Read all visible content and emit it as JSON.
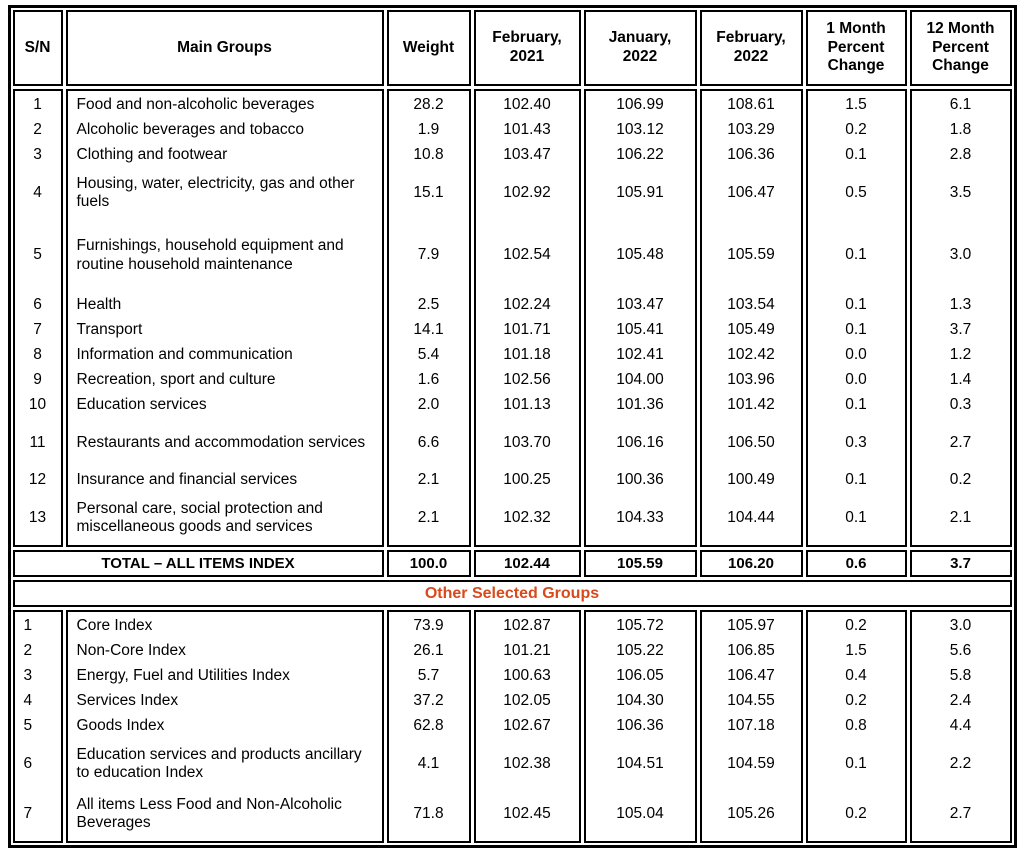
{
  "banner": {
    "label": "Other Selected Groups",
    "color": "#D8491C"
  },
  "colors": {
    "border": "#000000",
    "text": "#000000",
    "background": "#ffffff"
  },
  "header": {
    "columns": [
      "S/N",
      "Main Groups",
      "Weight",
      "February,\n2021",
      "January,\n2022",
      "February,\n2022",
      "1 Month\nPercent\nChange",
      "12 Month\nPercent\nChange"
    ]
  },
  "main_rows": [
    {
      "sn": "1",
      "name": "Food and non-alcoholic beverages",
      "weight": "28.2",
      "feb21": "102.40",
      "jan22": "106.99",
      "feb22": "108.61",
      "chg1": "1.5",
      "chg12": "6.1",
      "lines": 1
    },
    {
      "sn": "2",
      "name": "Alcoholic beverages and tobacco",
      "weight": "1.9",
      "feb21": "101.43",
      "jan22": "103.12",
      "feb22": "103.29",
      "chg1": "0.2",
      "chg12": "1.8",
      "lines": 1
    },
    {
      "sn": "3",
      "name": "Clothing and footwear",
      "weight": "10.8",
      "feb21": "103.47",
      "jan22": "106.22",
      "feb22": "106.36",
      "chg1": "0.1",
      "chg12": "2.8",
      "lines": 1
    },
    {
      "sn": "4",
      "name": "Housing, water, electricity, gas and other fuels",
      "weight": "15.1",
      "feb21": "102.92",
      "jan22": "105.91",
      "feb22": "106.47",
      "chg1": "0.5",
      "chg12": "3.5",
      "lines": 2
    },
    {
      "sn": "5",
      "name": "Furnishings, household equipment and routine household maintenance",
      "weight": "7.9",
      "feb21": "102.54",
      "jan22": "105.48",
      "feb22": "105.59",
      "chg1": "0.1",
      "chg12": "3.0",
      "lines": 3
    },
    {
      "sn": "6",
      "name": "Health",
      "weight": "2.5",
      "feb21": "102.24",
      "jan22": "103.47",
      "feb22": "103.54",
      "chg1": "0.1",
      "chg12": "1.3",
      "lines": 1
    },
    {
      "sn": "7",
      "name": "Transport",
      "weight": "14.1",
      "feb21": "101.71",
      "jan22": "105.41",
      "feb22": "105.49",
      "chg1": "0.1",
      "chg12": "3.7",
      "lines": 1
    },
    {
      "sn": "8",
      "name": "Information and communication",
      "weight": "5.4",
      "feb21": "101.18",
      "jan22": "102.41",
      "feb22": "102.42",
      "chg1": "0.0",
      "chg12": "1.2",
      "lines": 1
    },
    {
      "sn": "9",
      "name": "Recreation, sport and culture",
      "weight": "1.6",
      "feb21": "102.56",
      "jan22": "104.00",
      "feb22": "103.96",
      "chg1": "0.0",
      "chg12": "1.4",
      "lines": 1
    },
    {
      "sn": "10",
      "name": "Education services",
      "weight": "2.0",
      "feb21": "101.13",
      "jan22": "101.36",
      "feb22": "101.42",
      "chg1": "0.1",
      "chg12": "0.3",
      "lines": 1
    },
    {
      "sn": "11",
      "name": "Restaurants and accommodation services",
      "weight": "6.6",
      "feb21": "103.70",
      "jan22": "106.16",
      "feb22": "106.50",
      "chg1": "0.3",
      "chg12": "2.7",
      "lines": 2
    },
    {
      "sn": "12",
      "name": "Insurance and financial services",
      "weight": "2.1",
      "feb21": "100.25",
      "jan22": "100.36",
      "feb22": "100.49",
      "chg1": "0.1",
      "chg12": "0.2",
      "lines": 1
    },
    {
      "sn": "13",
      "name": "Personal care, social protection and miscellaneous goods and services",
      "weight": "2.1",
      "feb21": "102.32",
      "jan22": "104.33",
      "feb22": "104.44",
      "chg1": "0.1",
      "chg12": "2.1",
      "lines": 2
    }
  ],
  "total_row": {
    "label": "TOTAL – ALL ITEMS INDEX",
    "weight": "100.0",
    "feb21": "102.44",
    "jan22": "105.59",
    "feb22": "106.20",
    "chg1": "0.6",
    "chg12": "3.7"
  },
  "other_rows": [
    {
      "sn": "1",
      "name": "Core Index",
      "weight": "73.9",
      "feb21": "102.87",
      "jan22": "105.72",
      "feb22": "105.97",
      "chg1": "0.2",
      "chg12": "3.0",
      "lines": 1
    },
    {
      "sn": "2",
      "name": "Non-Core Index",
      "weight": "26.1",
      "feb21": "101.21",
      "jan22": "105.22",
      "feb22": "106.85",
      "chg1": "1.5",
      "chg12": "5.6",
      "lines": 1
    },
    {
      "sn": "3",
      "name": "Energy, Fuel and Utilities Index",
      "weight": "5.7",
      "feb21": "100.63",
      "jan22": "106.05",
      "feb22": "106.47",
      "chg1": "0.4",
      "chg12": "5.8",
      "lines": 1
    },
    {
      "sn": "4",
      "name": "Services Index",
      "weight": "37.2",
      "feb21": "102.05",
      "jan22": "104.30",
      "feb22": "104.55",
      "chg1": "0.2",
      "chg12": "2.4",
      "lines": 1
    },
    {
      "sn": "5",
      "name": "Goods Index",
      "weight": "62.8",
      "feb21": "102.67",
      "jan22": "106.36",
      "feb22": "107.18",
      "chg1": "0.8",
      "chg12": "4.4",
      "lines": 1
    },
    {
      "sn": "6",
      "name": "Education services and products ancillary to education Index",
      "weight": "4.1",
      "feb21": "102.38",
      "jan22": "104.51",
      "feb22": "104.59",
      "chg1": "0.1",
      "chg12": "2.2",
      "lines": 2
    },
    {
      "sn": "7",
      "name": "All items Less Food and Non-Alcoholic Beverages",
      "weight": "71.8",
      "feb21": "102.45",
      "jan22": "105.04",
      "feb22": "105.26",
      "chg1": "0.2",
      "chg12": "2.7",
      "lines": 2
    }
  ]
}
